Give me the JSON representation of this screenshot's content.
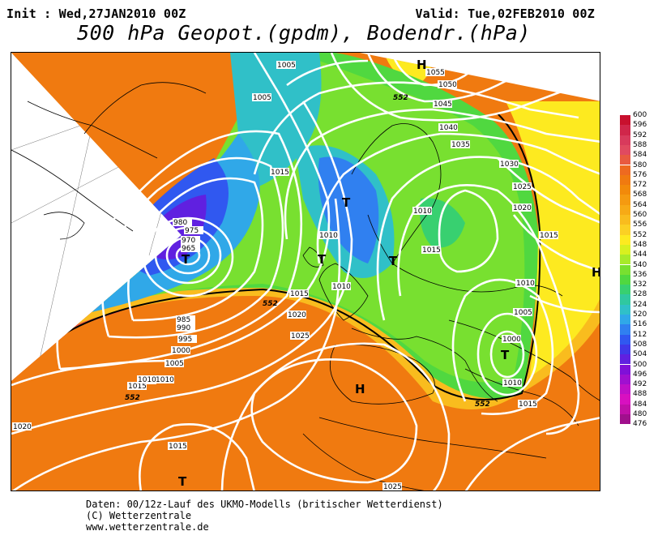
{
  "header": {
    "init": "Init : Wed,27JAN2010 00Z",
    "valid": "Valid: Tue,02FEB2010 00Z",
    "title": "500 hPa Geopot.(gpdm), Bodendr.(hPa)"
  },
  "map": {
    "pressure_labels": [
      "1005",
      "1005",
      "1010",
      "1015",
      "1010",
      "1010",
      "1015",
      "1015",
      "1020",
      "1025",
      "1015",
      "1010",
      "1005",
      "1000",
      "995",
      "990",
      "985",
      "975",
      "970",
      "965",
      "980",
      "1010",
      "1015",
      "1020",
      "1025",
      "1030",
      "1035",
      "1040",
      "1045",
      "1050",
      "1055",
      "1015",
      "1010",
      "1005",
      "1000",
      "1015",
      "1010",
      "1015",
      "1025",
      "1020",
      "1015",
      "1015",
      "1010"
    ],
    "contour_label": "552",
    "centres": [
      "H",
      "T",
      "T",
      "T",
      "T",
      "T",
      "H",
      "T",
      "H"
    ]
  },
  "scale": {
    "levels": [
      "600",
      "596",
      "592",
      "588",
      "584",
      "580",
      "576",
      "572",
      "568",
      "564",
      "560",
      "556",
      "552",
      "548",
      "544",
      "540",
      "536",
      "532",
      "528",
      "524",
      "520",
      "516",
      "512",
      "508",
      "504",
      "500",
      "496",
      "492",
      "488",
      "484",
      "480",
      "476"
    ],
    "colors": [
      "#c8102e",
      "#d0264a",
      "#d83a5c",
      "#e04a60",
      "#e85a40",
      "#ee6a20",
      "#f07a10",
      "#f28a0a",
      "#f59a10",
      "#f7aa16",
      "#f9bc1e",
      "#fbd024",
      "#fdea20",
      "#d8f020",
      "#a8ea2a",
      "#78e030",
      "#50d840",
      "#38d070",
      "#30c8a0",
      "#30c0c8",
      "#30a8e8",
      "#3080f0",
      "#3058f0",
      "#4038e8",
      "#6020e0",
      "#8010d8",
      "#a010d0",
      "#c010c8",
      "#d810c0",
      "#c010a8",
      "#a0108c",
      "#800080"
    ]
  },
  "footer": {
    "line1": "Daten: 00/12z-Lauf des UKMO-Modells (britischer Wetterdienst)",
    "line2": "(C) Wetterzentrale",
    "line3": "www.wetterzentrale.de"
  }
}
